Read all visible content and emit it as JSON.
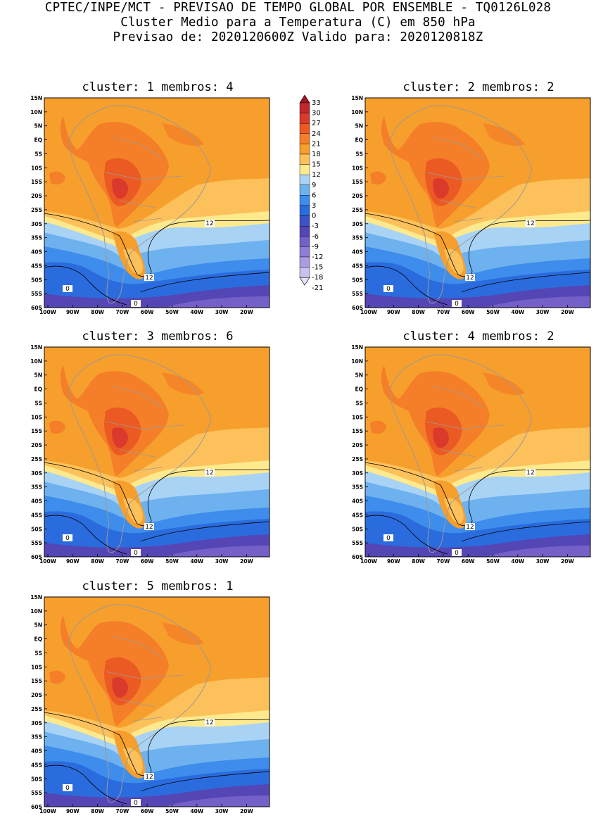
{
  "header": {
    "line1": "CPTEC/INPE/MCT - PREVISAO DE TEMPO GLOBAL POR ENSEMBLE - TQ0126L028",
    "line2": "Cluster Medio para a Temperatura (C) em 850 hPa",
    "line3": "Previsao de: 2020120600Z   Valido para: 2020120818Z"
  },
  "colorbar": {
    "labels": [
      "33",
      "30",
      "27",
      "24",
      "21",
      "18",
      "15",
      "12",
      "9",
      "6",
      "3",
      "0",
      "-3",
      "-6",
      "-9",
      "-12",
      "-15",
      "-18",
      "-21"
    ],
    "colors": [
      "#a0141e",
      "#c0282d",
      "#d93a2b",
      "#ec5a23",
      "#f47f28",
      "#f79f2c",
      "#fcc15a",
      "#fde98e",
      "#a9d3f5",
      "#6eb1ef",
      "#3e8ceb",
      "#2a6cdd",
      "#3d52c6",
      "#5546b6",
      "#7460c7",
      "#8f7dd6",
      "#ac9ce2",
      "#cbbfee",
      "#e6dff7"
    ]
  },
  "map": {
    "lat_labels": [
      "15N",
      "10N",
      "5N",
      "EQ",
      "5S",
      "10S",
      "15S",
      "20S",
      "25S",
      "30S",
      "35S",
      "40S",
      "45S",
      "50S",
      "55S",
      "60S"
    ],
    "lon_labels": [
      "100W",
      "90W",
      "80W",
      "70W",
      "60W",
      "50W",
      "40W",
      "30W",
      "20W"
    ],
    "contour_labels": {
      "twelve": "12",
      "zero": "0"
    }
  },
  "panels": [
    {
      "title": "cluster: 1  membros: 4"
    },
    {
      "title": "cluster: 2  membros: 2"
    },
    {
      "title": "cluster: 3  membros: 6"
    },
    {
      "title": "cluster: 4  membros: 2"
    },
    {
      "title": "cluster: 5  membros: 1"
    }
  ]
}
